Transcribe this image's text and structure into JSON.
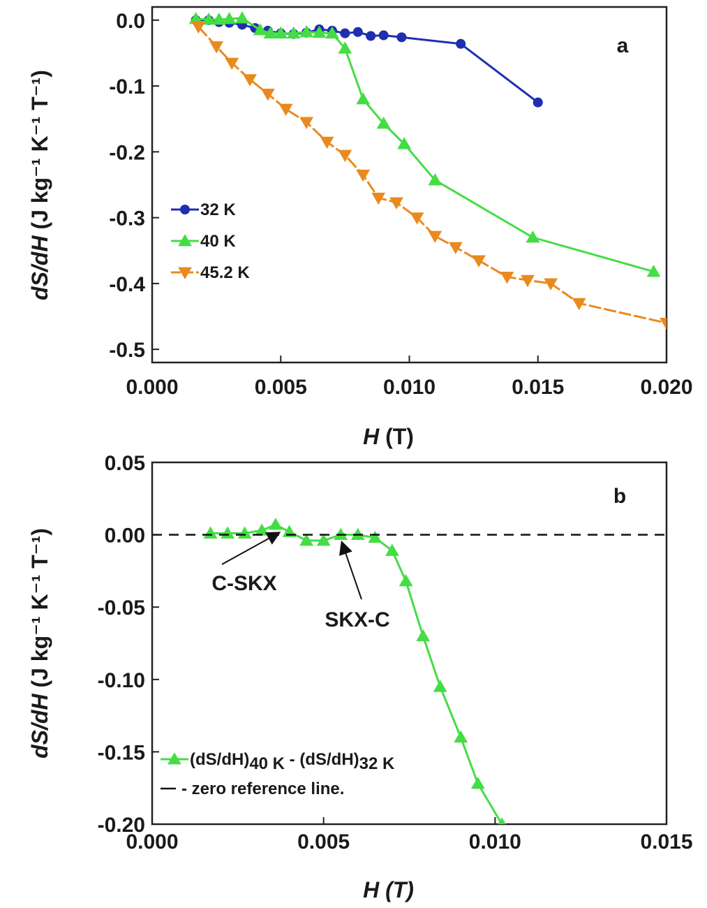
{
  "chart_data": [
    {
      "panel_label": "a",
      "type": "line",
      "xlabel_italic": "H",
      "xlabel_rest": " (T)",
      "ylabel_italic": "dS/dH",
      "ylabel_rest": " (J kg⁻¹ K⁻¹ T⁻¹)",
      "xlim": [
        0,
        0.02
      ],
      "ylim": [
        -0.52,
        0.02
      ],
      "x_ticks": [
        0.0,
        0.005,
        0.01,
        0.015,
        0.02
      ],
      "x_tick_labels": [
        "0.000",
        "0.005",
        "0.010",
        "0.015",
        "0.020"
      ],
      "y_ticks": [
        0.0,
        -0.1,
        -0.2,
        -0.3,
        -0.4,
        -0.5
      ],
      "y_tick_labels": [
        "0.0",
        "-0.1",
        "-0.2",
        "-0.3",
        "-0.4",
        "-0.5"
      ],
      "legend_position": "middle-left",
      "series": [
        {
          "name": "32 K",
          "color": "#1f2fb0",
          "marker": "circle",
          "dashed": false,
          "x": [
            0.0017,
            0.0022,
            0.0026,
            0.003,
            0.0035,
            0.004,
            0.0045,
            0.005,
            0.0055,
            0.006,
            0.0065,
            0.007,
            0.0075,
            0.008,
            0.0085,
            0.009,
            0.0097,
            0.012,
            0.015
          ],
          "y": [
            0.0,
            0.0,
            -0.003,
            -0.004,
            -0.007,
            -0.012,
            -0.016,
            -0.02,
            -0.021,
            -0.019,
            -0.014,
            -0.016,
            -0.02,
            -0.018,
            -0.024,
            -0.023,
            -0.026,
            -0.036,
            -0.125
          ]
        },
        {
          "name": "40 K",
          "color": "#44dd44",
          "marker": "triangle-up",
          "dashed": false,
          "x": [
            0.0017,
            0.0022,
            0.0026,
            0.003,
            0.0035,
            0.0042,
            0.0046,
            0.005,
            0.0055,
            0.006,
            0.0065,
            0.007,
            0.0075,
            0.0082,
            0.009,
            0.0098,
            0.011,
            0.0148,
            0.0195
          ],
          "y": [
            0.002,
            0.001,
            0.001,
            0.002,
            0.003,
            -0.015,
            -0.02,
            -0.02,
            -0.02,
            -0.018,
            -0.019,
            -0.02,
            -0.043,
            -0.12,
            -0.157,
            -0.188,
            -0.243,
            -0.33,
            -0.382
          ]
        },
        {
          "name": "45.2 K",
          "color": "#e98a1e",
          "marker": "triangle-down",
          "dashed": true,
          "x": [
            0.0018,
            0.0025,
            0.0031,
            0.0038,
            0.0045,
            0.0052,
            0.006,
            0.0068,
            0.0075,
            0.0082,
            0.0088,
            0.0095,
            0.0103,
            0.011,
            0.0118,
            0.0127,
            0.0138,
            0.0146,
            0.0155,
            0.0166,
            0.02
          ],
          "y": [
            -0.01,
            -0.04,
            -0.065,
            -0.09,
            -0.112,
            -0.135,
            -0.155,
            -0.185,
            -0.205,
            -0.235,
            -0.27,
            -0.277,
            -0.3,
            -0.328,
            -0.345,
            -0.365,
            -0.39,
            -0.395,
            -0.4,
            -0.43,
            -0.46
          ]
        }
      ]
    },
    {
      "panel_label": "b",
      "type": "line",
      "xlabel": "H (T)",
      "ylabel_italic": "dS/dH",
      "ylabel_rest": " (J kg⁻¹ K⁻¹ T⁻¹)",
      "xlim": [
        0,
        0.015
      ],
      "ylim": [
        -0.2,
        0.05
      ],
      "x_ticks": [
        0.0,
        0.005,
        0.01,
        0.015
      ],
      "x_tick_labels": [
        "0.000",
        "0.005",
        "0.010",
        "0.015"
      ],
      "y_ticks": [
        0.05,
        0.0,
        -0.05,
        -0.1,
        -0.15,
        -0.2
      ],
      "y_tick_labels": [
        "0.05",
        "0.00",
        "-0.05",
        "-0.10",
        "-0.15",
        "-0.20"
      ],
      "legend_position": "bottom-left",
      "series": [
        {
          "name": "(dS/dH)40 K - (dS/dH)32 K",
          "name_parts": {
            "p1": "(dS/dH)",
            "s1": "40 K",
            "mid": " - (dS/dH)",
            "s2": "32 K"
          },
          "color": "#44dd44",
          "marker": "triangle-up",
          "dashed": false,
          "x": [
            0.0017,
            0.0022,
            0.0027,
            0.0032,
            0.0036,
            0.004,
            0.0045,
            0.005,
            0.0055,
            0.006,
            0.0065,
            0.007,
            0.0074,
            0.0079,
            0.0084,
            0.009,
            0.0095,
            0.0102
          ],
          "y": [
            0.001,
            0.001,
            0.001,
            0.003,
            0.007,
            0.002,
            -0.004,
            -0.004,
            0.0,
            0.0,
            -0.002,
            -0.011,
            -0.032,
            -0.07,
            -0.105,
            -0.14,
            -0.172,
            -0.2
          ]
        },
        {
          "name": "- zero reference line.",
          "color": "#111111",
          "dashed": true,
          "type": "reference",
          "y_value": 0.0
        }
      ],
      "annotations": [
        {
          "text": "C-SKX",
          "x": 0.0036,
          "y": 0.0
        },
        {
          "text": "SKX-C",
          "x": 0.0055,
          "y": 0.0
        }
      ]
    }
  ]
}
